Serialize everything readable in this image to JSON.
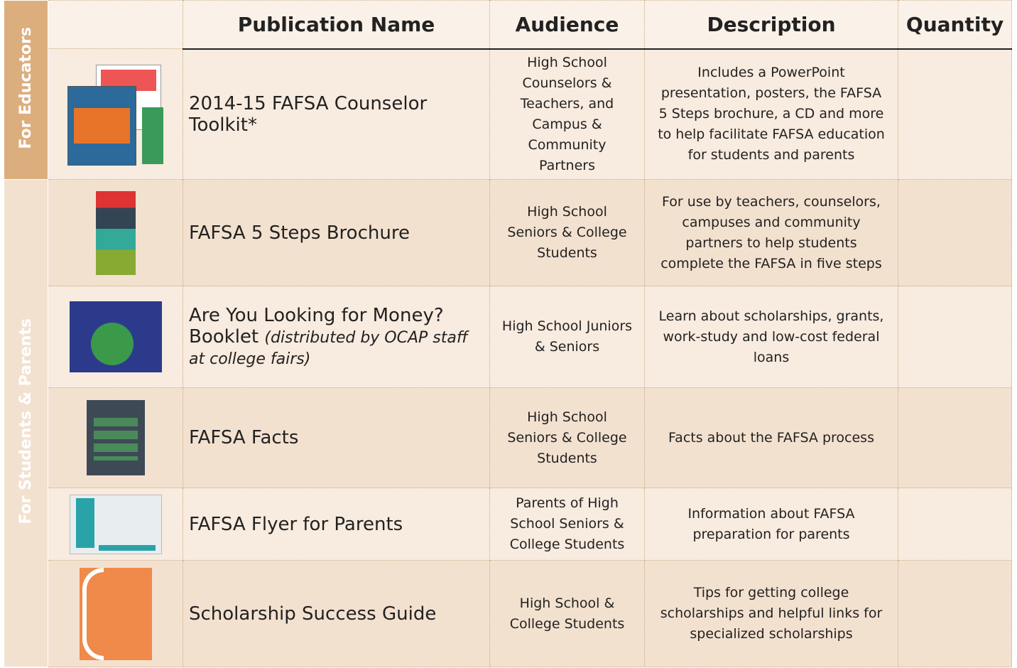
{
  "table": {
    "columns": [
      "Publication Name",
      "Audience",
      "Description",
      "Quantity"
    ],
    "sections": [
      "For Educators",
      "For Students & Parents"
    ],
    "rows": [
      {
        "name": "2014-15 FAFSA Counselor Toolkit*",
        "audience": "High School Counselors & Teachers, and Campus & Community Partners",
        "description": "Includes a PowerPoint presentation, posters, the FAFSA 5 Steps brochure, a CD and more to help facilitate FAFSA education for students and parents"
      },
      {
        "name": "FAFSA 5 Steps Brochure",
        "audience": "High School Seniors & College Students",
        "description": "For use by teachers, counselors, campuses and community partners to help students complete the FAFSA in five steps"
      },
      {
        "name": "Are You Looking for Money? Booklet",
        "note": "(distributed by OCAP staff at college fairs)",
        "audience": "High School Juniors & Seniors",
        "description": "Learn about scholarships, grants, work-study and low-cost federal loans"
      },
      {
        "name": "FAFSA Facts",
        "audience": "High School Seniors & College Students",
        "description": "Facts about the FAFSA process"
      },
      {
        "name": "FAFSA Flyer for Parents",
        "audience": "Parents of High School Seniors & College Students",
        "description": "Information about FAFSA preparation for parents"
      },
      {
        "name": "Scholarship Success Guide",
        "audience": "High School & College Students",
        "description": "Tips for getting college scholarships and helpful links for specialized scholarships"
      }
    ]
  }
}
